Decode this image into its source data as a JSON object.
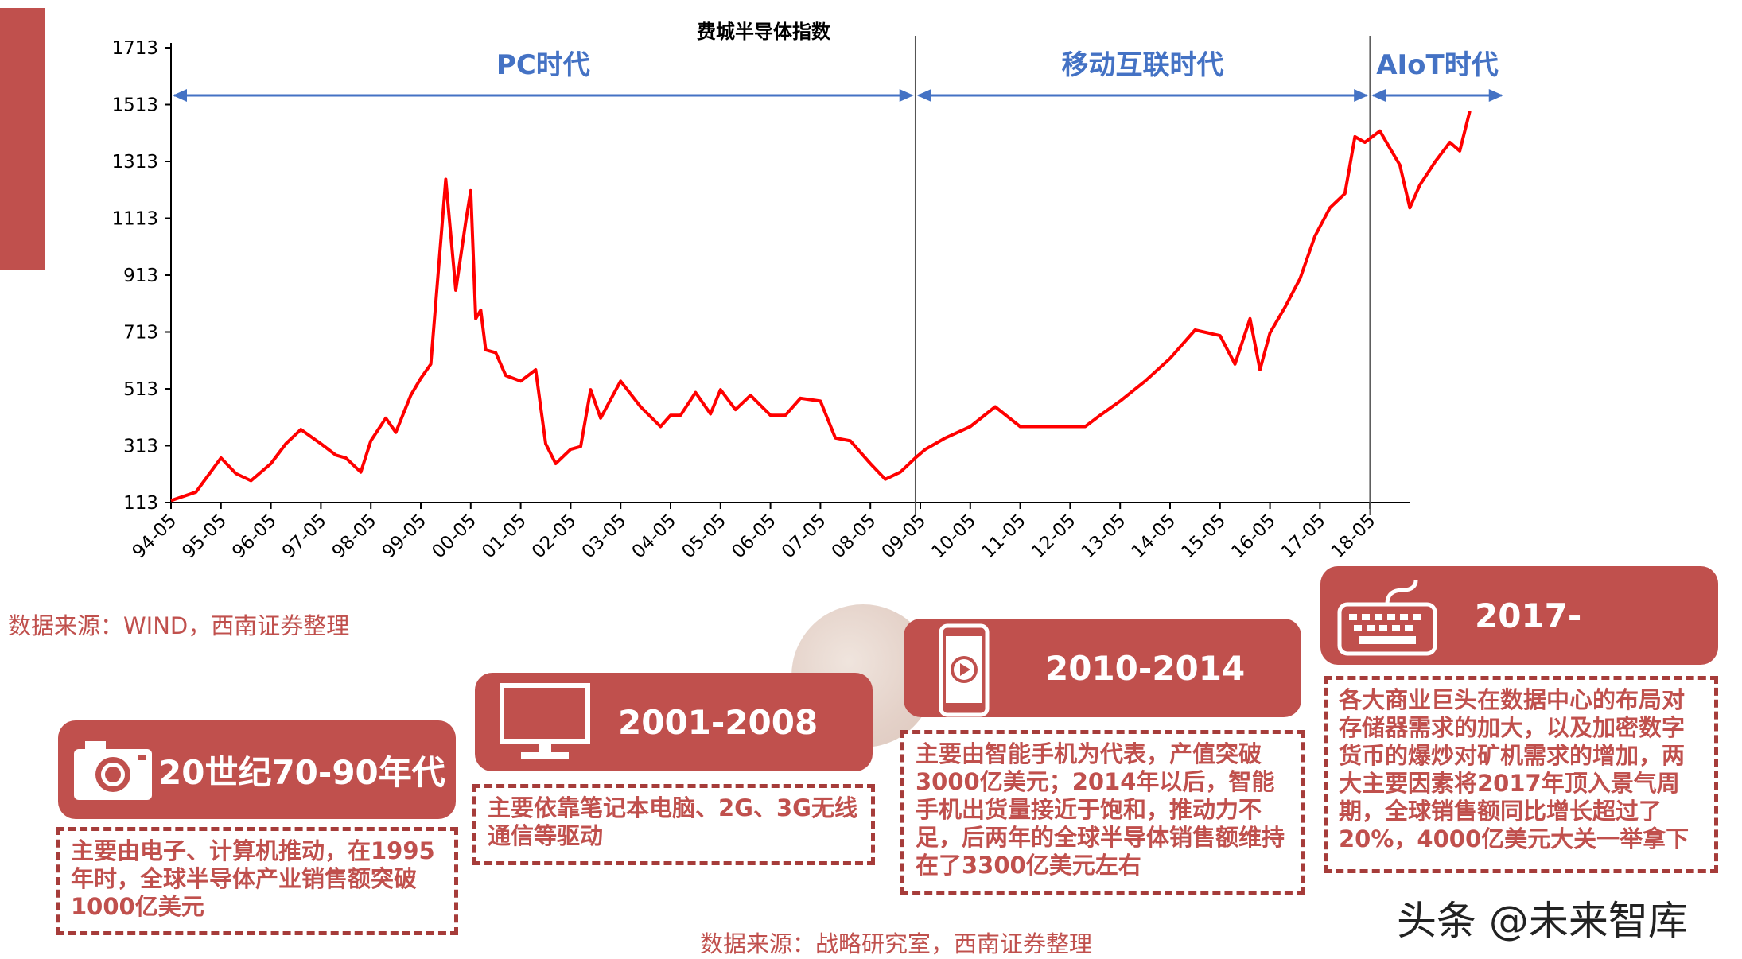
{
  "chart_data": {
    "type": "line",
    "title": "费城半导体指数",
    "xlabel": "",
    "ylabel": "",
    "ylim": [
      113,
      1713
    ],
    "y_ticks": [
      113,
      313,
      513,
      713,
      913,
      1113,
      1313,
      1513,
      1713
    ],
    "x_ticks": [
      "94-05",
      "95-05",
      "96-05",
      "97-05",
      "98-05",
      "99-05",
      "00-05",
      "01-05",
      "02-05",
      "03-05",
      "04-05",
      "05-05",
      "06-05",
      "07-05",
      "08-05",
      "09-05",
      "10-05",
      "11-05",
      "12-05",
      "13-05",
      "14-05",
      "15-05",
      "16-05",
      "17-05",
      "18-05"
    ],
    "grid": false,
    "legend": "none",
    "eras": [
      {
        "label": "PC时代",
        "start": 0,
        "end": 14.9
      },
      {
        "label": "移动互联时代",
        "start": 14.9,
        "end": 24
      },
      {
        "label": "AIoT时代",
        "start": 24,
        "end": 26.7
      }
    ],
    "series": [
      {
        "x": [
          0,
          0.5,
          1,
          1.3,
          1.6,
          2,
          2.3,
          2.6,
          3,
          3.3,
          3.5,
          3.8,
          4,
          4.3,
          4.5,
          4.8,
          5,
          5.2,
          5.5,
          5.7,
          5.9,
          6,
          6.1,
          6.2,
          6.3,
          6.5,
          6.7,
          7,
          7.3,
          7.5,
          7.7,
          8,
          8.2,
          8.4,
          8.6,
          9,
          9.4,
          9.8,
          10,
          10.2,
          10.5,
          10.8,
          11,
          11.3,
          11.6,
          12,
          12.3,
          12.6,
          13,
          13.3,
          13.6,
          14,
          14.3,
          14.6,
          14.9,
          15.1,
          15.5,
          16,
          16.5,
          17,
          17.5,
          18,
          18.3,
          18.6,
          19,
          19.5,
          20,
          20.5,
          21,
          21.3,
          21.6,
          21.8,
          22,
          22.3,
          22.6,
          22.9,
          23.2,
          23.5,
          23.7,
          23.9,
          24.2,
          24.4,
          24.6,
          24.8,
          25,
          25.3,
          25.6,
          25.8,
          26
        ],
        "values": [
          120,
          150,
          270,
          215,
          190,
          250,
          320,
          370,
          320,
          280,
          270,
          220,
          330,
          410,
          360,
          490,
          550,
          600,
          1250,
          860,
          1100,
          1210,
          760,
          790,
          650,
          640,
          560,
          540,
          580,
          320,
          250,
          300,
          310,
          510,
          410,
          540,
          450,
          380,
          420,
          420,
          500,
          425,
          510,
          440,
          490,
          420,
          420,
          480,
          470,
          340,
          330,
          250,
          195,
          220,
          270,
          300,
          340,
          380,
          450,
          380,
          380,
          380,
          380,
          420,
          470,
          540,
          620,
          720,
          700,
          600,
          760,
          580,
          710,
          800,
          900,
          1050,
          1150,
          1200,
          1400,
          1380,
          1420,
          1360,
          1300,
          1150,
          1230,
          1310,
          1380,
          1350,
          1490
        ]
      }
    ]
  },
  "sources": {
    "chart_source": "数据来源：WIND，西南证券整理",
    "bottom_source": "数据来源：战略研究室，西南证券整理"
  },
  "panels": [
    {
      "title": "20世纪70-90年代",
      "icon": "camera-icon",
      "text": "主要由电子、计算机推动，在1995年时，全球半导体产业销售额突破1000亿美元"
    },
    {
      "title": "2001-2008",
      "icon": "monitor-icon",
      "text": "主要依靠笔记本电脑、2G、3G无线通信等驱动"
    },
    {
      "title": "2010-2014",
      "icon": "smartphone-icon",
      "text": "主要由智能手机为代表，产值突破3000亿美元；2014年以后，智能手机出货量接近于饱和，推动力不足，后两年的全球半导体销售额维持在了3300亿美元左右"
    },
    {
      "title": "2017-",
      "icon": "keyboard-icon",
      "text": "各大商业巨头在数据中心的布局对存储器需求的加大，以及加密数字货币的爆炒对矿机需求的增加，两大主要因素将2017年顶入景气周期，全球销售额同比增长超过了20%，4000亿美元大关一举拿下"
    }
  ],
  "credit": "头条 @未来智库",
  "colors": {
    "accent": "#c0504d",
    "line": "#ff0000",
    "era": "#4472c4"
  }
}
